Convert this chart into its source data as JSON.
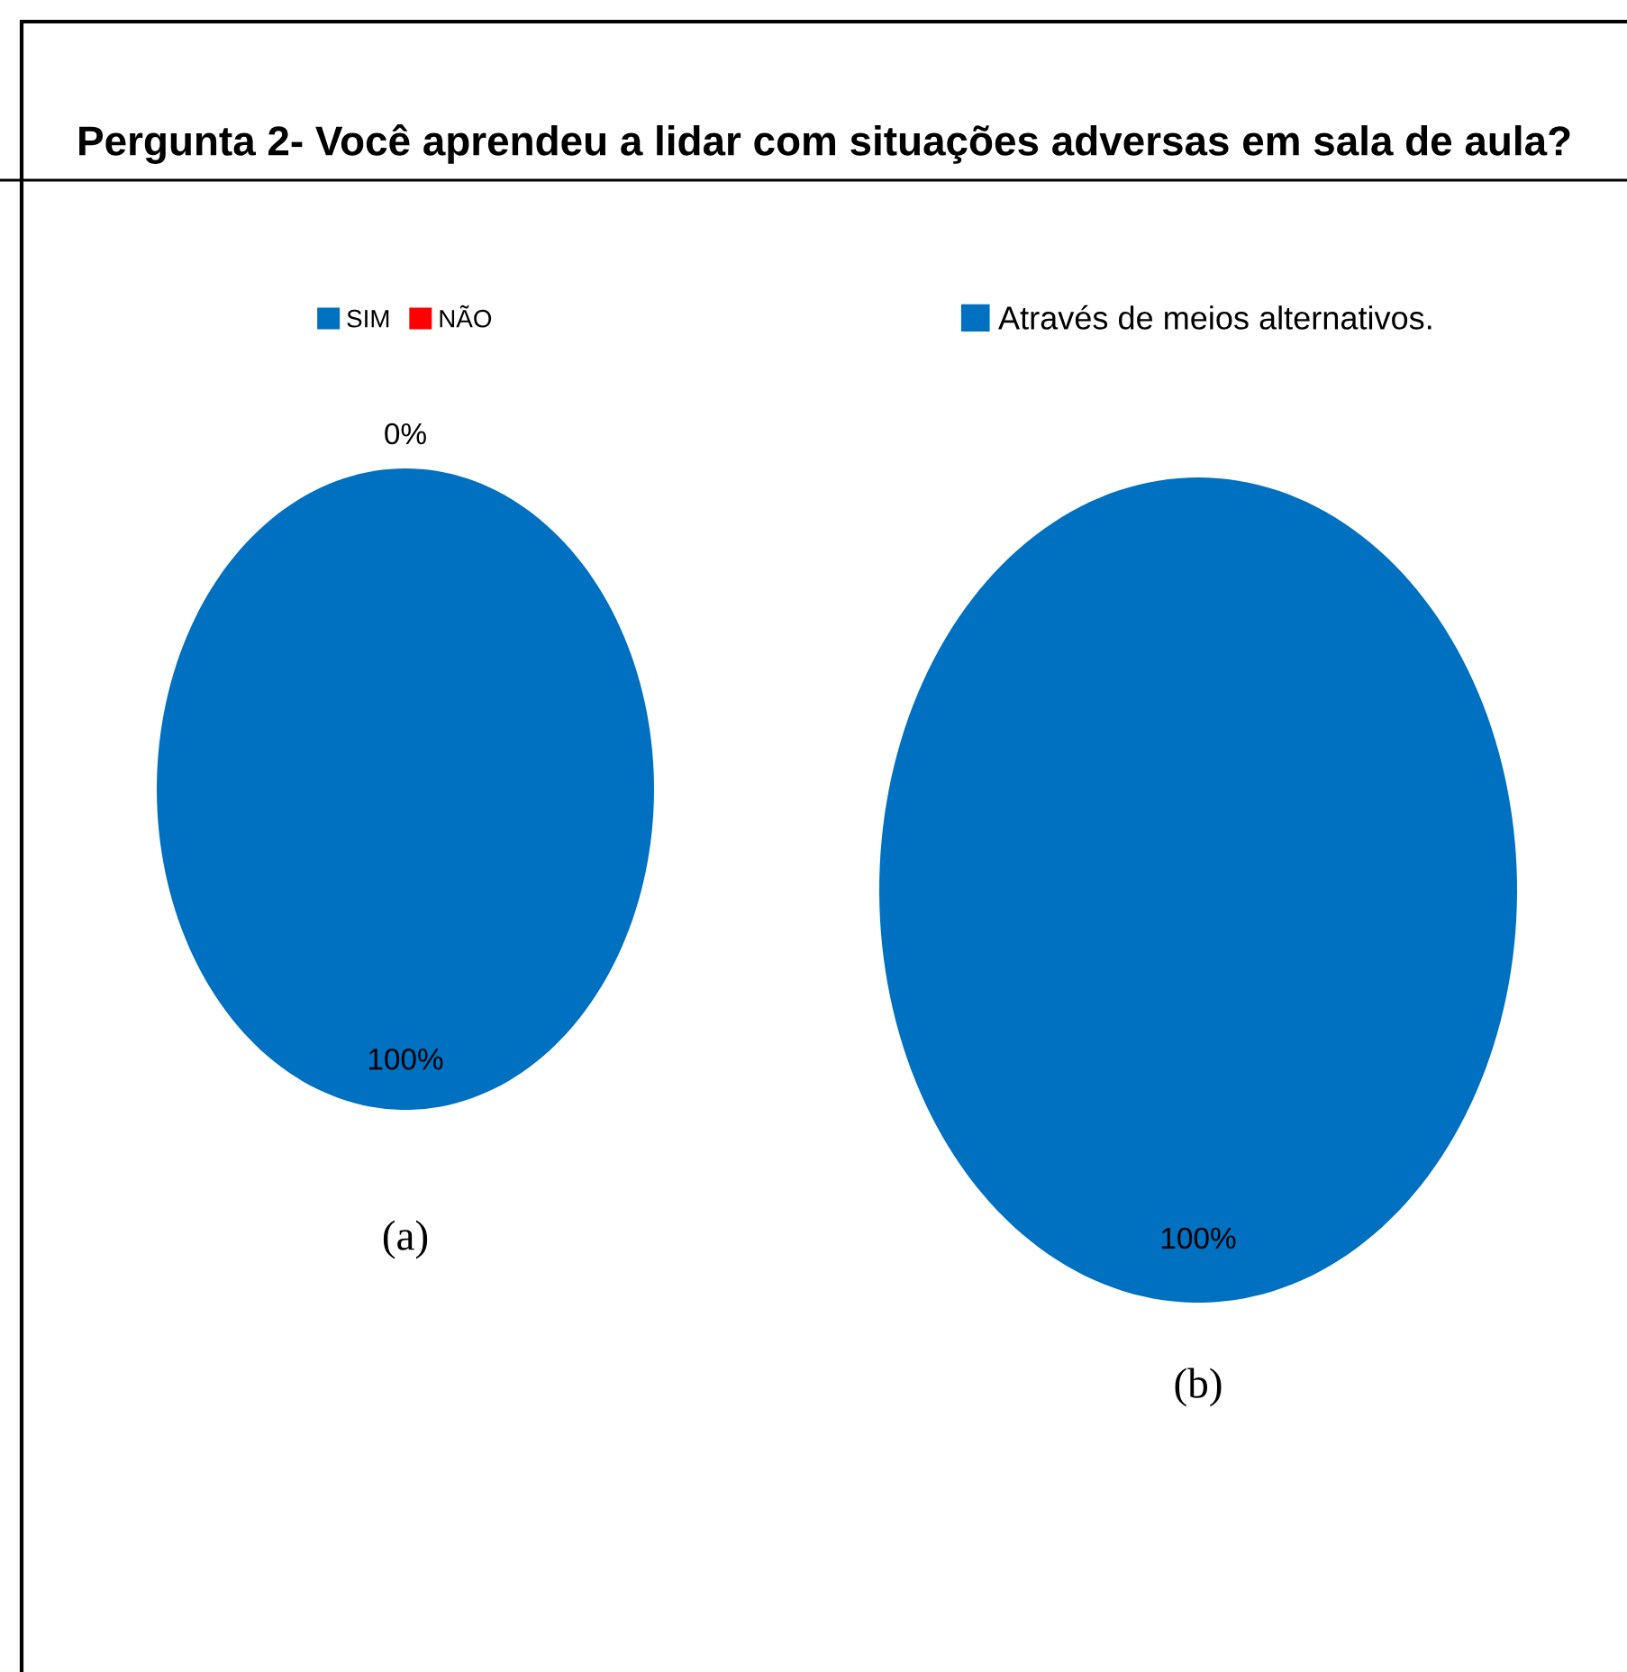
{
  "chart_data": [
    {
      "type": "pie",
      "title": "Pergunta 2- Você aprendeu a lidar com situações adversas em sala de aula?",
      "categories": [
        "SIM",
        "NÃO"
      ],
      "values": [
        100,
        0
      ],
      "colors": [
        "#0070c0",
        "#ff0000"
      ],
      "value_labels": [
        "100%",
        "0%"
      ],
      "legend": "top",
      "annotations": [
        "(a)"
      ]
    },
    {
      "type": "pie",
      "categories": [
        "Através de meios alternativos."
      ],
      "values": [
        100
      ],
      "colors": [
        "#0070c0"
      ],
      "value_labels": [
        "100%"
      ],
      "legend": "top",
      "annotations": [
        "(b)"
      ]
    }
  ]
}
